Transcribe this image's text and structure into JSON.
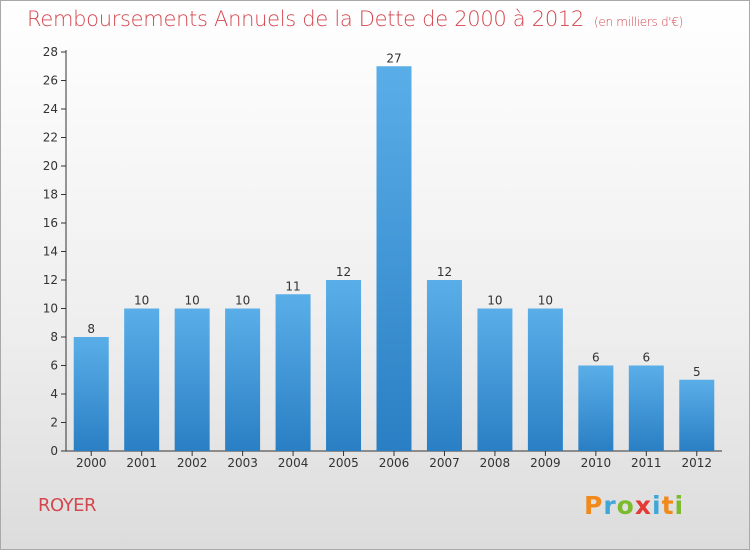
{
  "chart_data": {
    "type": "bar",
    "title": "Remboursements Annuels de la Dette de 2000 à 2012",
    "unit": "(en milliers d'€)",
    "categories": [
      "2000",
      "2001",
      "2002",
      "2003",
      "2004",
      "2005",
      "2006",
      "2007",
      "2008",
      "2009",
      "2010",
      "2011",
      "2012"
    ],
    "values": [
      8,
      10,
      10,
      10,
      11,
      12,
      27,
      12,
      10,
      10,
      6,
      6,
      5
    ],
    "ylim": [
      0,
      28
    ],
    "yticks": [
      0,
      2,
      4,
      6,
      8,
      10,
      12,
      14,
      16,
      18,
      20,
      22,
      24,
      26,
      28
    ],
    "grid": false,
    "bar_color": "#3f97dc"
  },
  "footer": {
    "commune": "ROYER",
    "logo": "Proxiti",
    "logo_letters": [
      {
        "ch": "P",
        "color": "#f08a1c"
      },
      {
        "ch": "r",
        "color": "#3fa7d8"
      },
      {
        "ch": "o",
        "color": "#7cbb2e"
      },
      {
        "ch": "x",
        "color": "#e53935"
      },
      {
        "ch": "i",
        "color": "#3fa7d8"
      },
      {
        "ch": "t",
        "color": "#f08a1c"
      },
      {
        "ch": "i",
        "color": "#7cbb2e"
      }
    ]
  }
}
